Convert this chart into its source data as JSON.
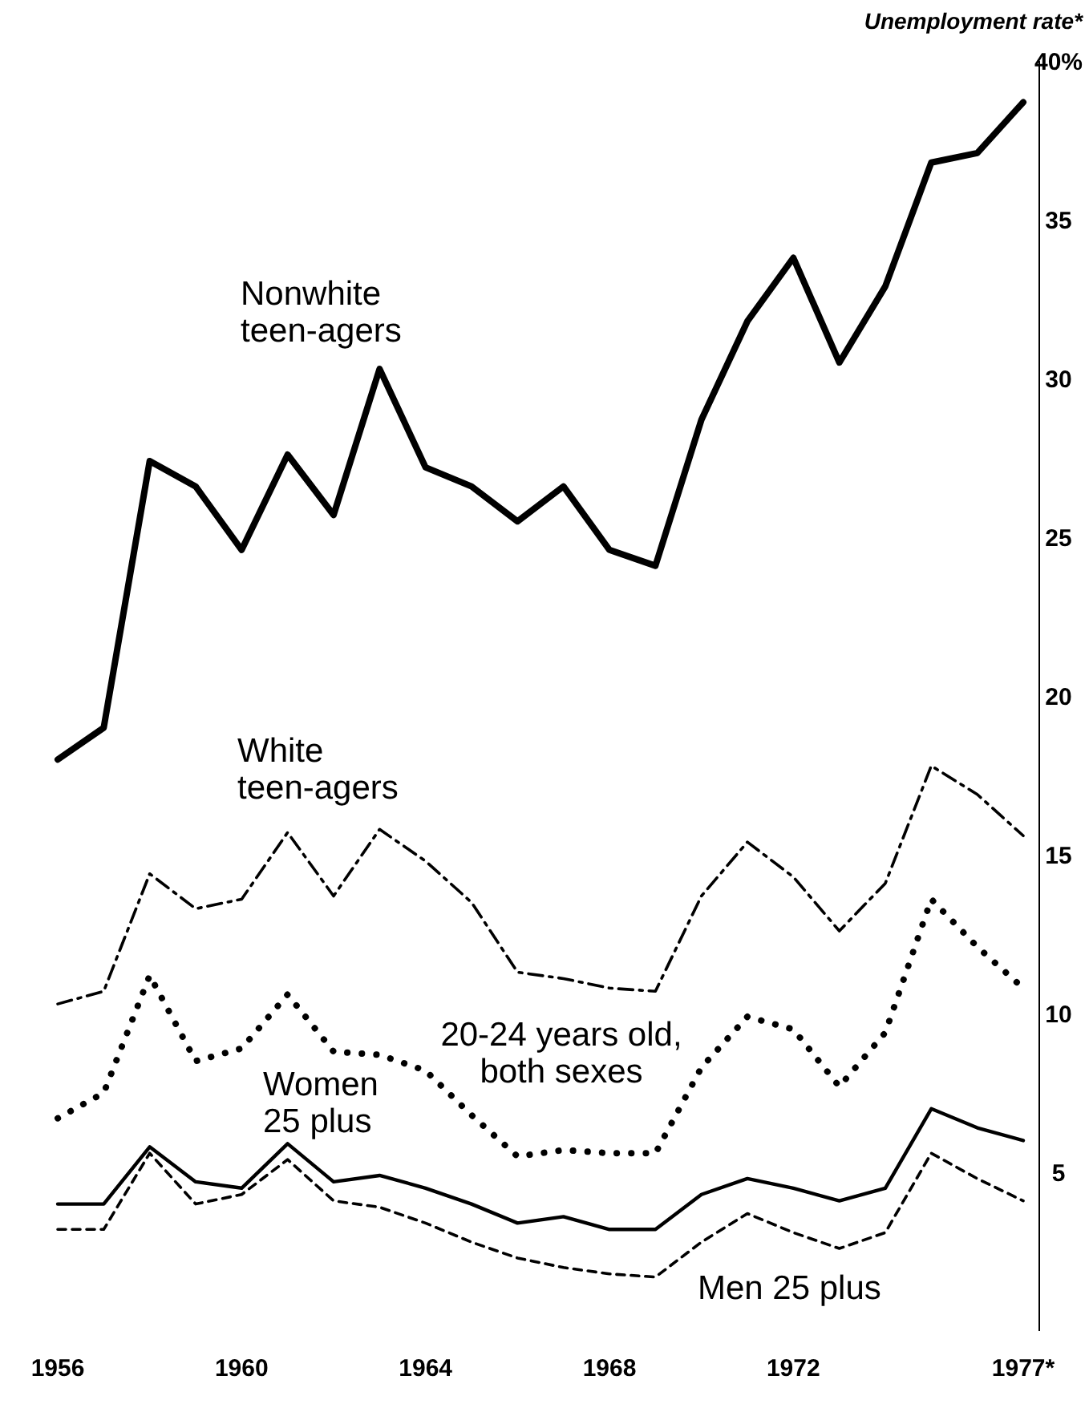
{
  "chart_data": {
    "type": "line",
    "ylabel": "Unemployment rate*",
    "x": [
      1956,
      1957,
      1958,
      1959,
      1960,
      1961,
      1962,
      1963,
      1964,
      1965,
      1966,
      1967,
      1968,
      1969,
      1970,
      1971,
      1972,
      1973,
      1974,
      1975,
      1976,
      1977
    ],
    "xlim": [
      1956,
      1977
    ],
    "xticks": [
      1956,
      1960,
      1964,
      1968,
      1972,
      {
        "value": 1977,
        "label": "1977*"
      }
    ],
    "ylim": [
      0,
      40
    ],
    "yticks": [
      5,
      10,
      15,
      20,
      25,
      30,
      35,
      {
        "value": 40,
        "label": "40%"
      }
    ],
    "grid": false,
    "legend": false,
    "marker": "none",
    "series": [
      {
        "name": "Nonwhite teen-agers",
        "color": "#000000",
        "line_style": "solid",
        "values": [
          18,
          19,
          27.4,
          26.6,
          24.6,
          27.6,
          25.7,
          30.3,
          27.2,
          26.6,
          25.5,
          26.6,
          24.6,
          24.1,
          28.7,
          31.8,
          33.8,
          30.5,
          32.9,
          36.8,
          37.1,
          38.7
        ]
      },
      {
        "name": "White teen-agers",
        "color": "#000000",
        "line_style": "dashed",
        "values": [
          10.3,
          10.7,
          14.4,
          13.3,
          13.6,
          15.7,
          13.7,
          15.8,
          14.8,
          13.5,
          11.3,
          11.1,
          10.8,
          10.7,
          13.7,
          15.4,
          14.3,
          12.6,
          14.1,
          17.8,
          16.9,
          15.6
        ]
      },
      {
        "name": "20-24 years old, both sexes",
        "color": "#000000",
        "line_style": "dotted",
        "values": [
          6.7,
          7.5,
          11.2,
          8.5,
          8.9,
          10.6,
          8.8,
          8.7,
          8.2,
          6.8,
          5.5,
          5.7,
          5.6,
          5.6,
          8.3,
          9.9,
          9.5,
          7.7,
          9.4,
          13.6,
          12.1,
          10.8
        ]
      },
      {
        "name": "Women 25 plus",
        "color": "#000000",
        "line_style": "solid",
        "values": [
          4.0,
          4.0,
          5.8,
          4.7,
          4.5,
          5.9,
          4.7,
          4.9,
          4.5,
          4.0,
          3.4,
          3.6,
          3.2,
          3.2,
          4.3,
          4.8,
          4.5,
          4.1,
          4.5,
          7.0,
          6.4,
          6.0
        ]
      },
      {
        "name": "Men 25 plus",
        "color": "#000000",
        "line_style": "dashed",
        "values": [
          3.2,
          3.2,
          5.6,
          4.0,
          4.3,
          5.4,
          4.1,
          3.9,
          3.4,
          2.8,
          2.3,
          2.0,
          1.8,
          1.7,
          2.8,
          3.7,
          3.1,
          2.6,
          3.1,
          5.6,
          4.8,
          4.1
        ]
      }
    ]
  }
}
